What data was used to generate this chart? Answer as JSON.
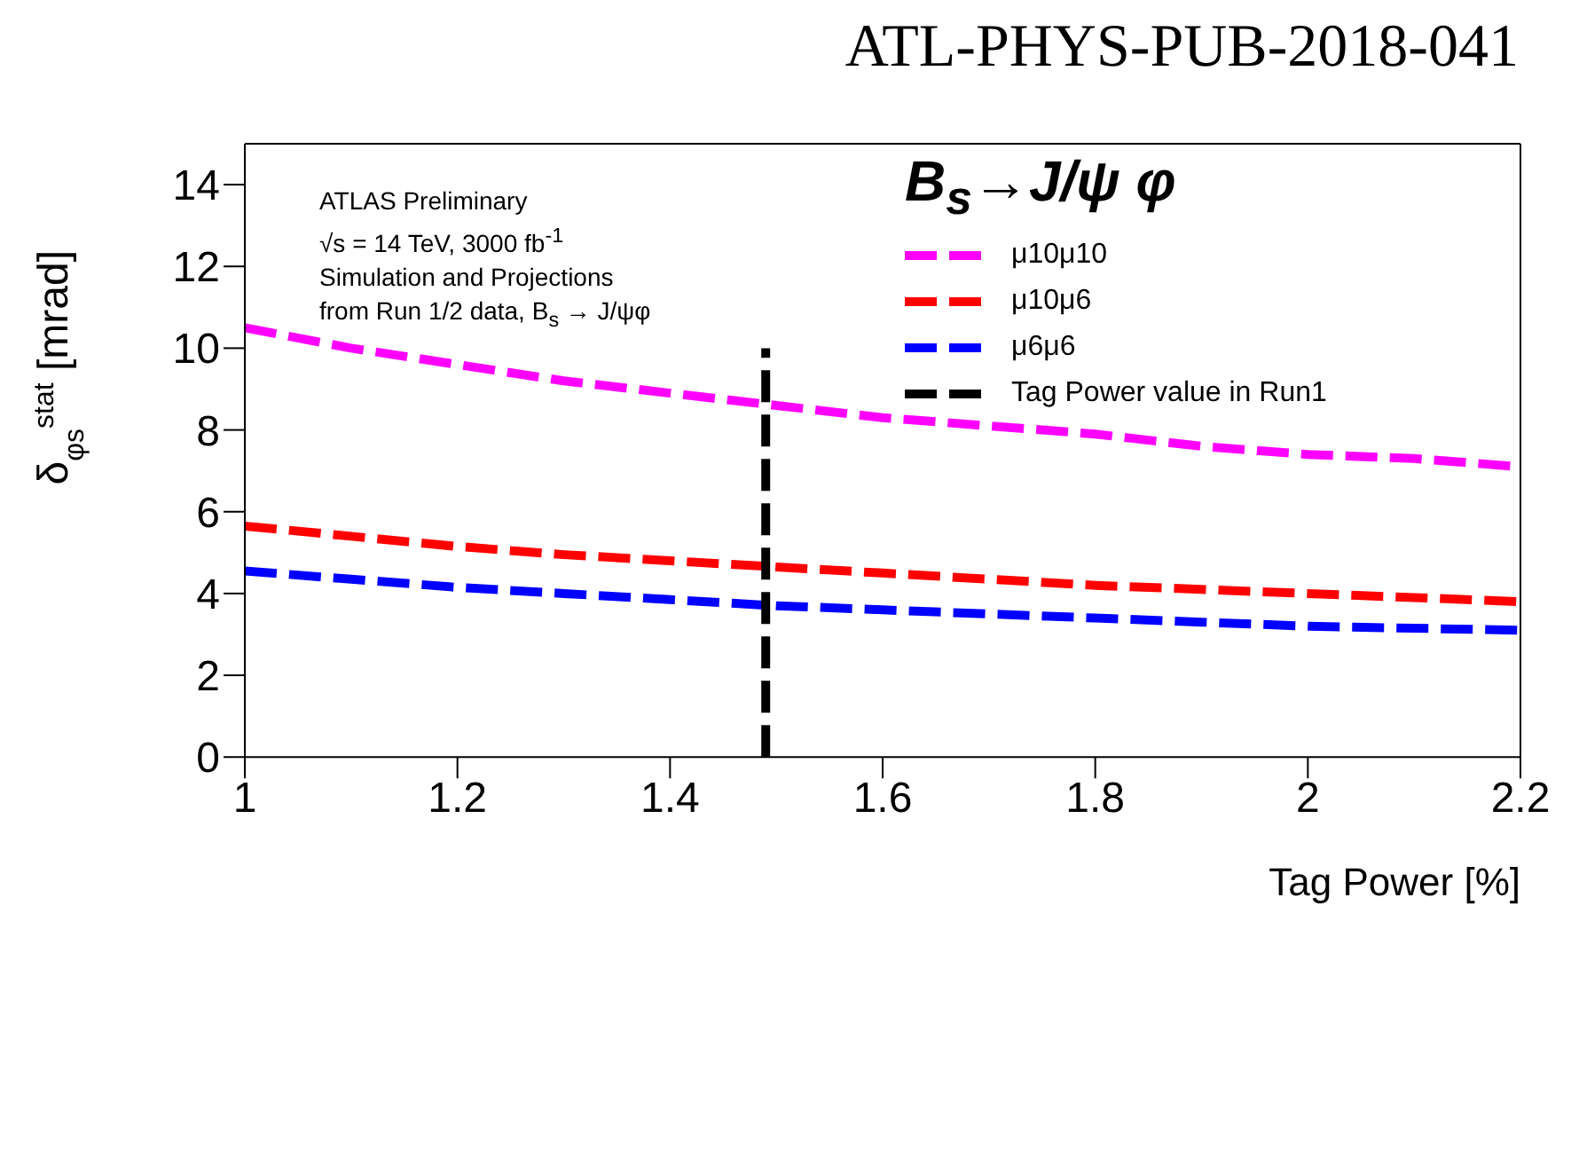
{
  "chart_data": {
    "type": "line",
    "title": "ATL-PHYS-PUB-2018-041",
    "xlabel": "Tag Power [%]",
    "ylabel": "δ$_{φs}$$^{stat}$ [mrad]",
    "legend_title": "B$_{s}$→J/ψ φ",
    "annotations": [
      "ATLAS Preliminary",
      "√s = 14 TeV, 3000 fb$^{-1}$",
      "Simulation and Projections",
      "from Run 1/2 data, B$_{s}$ → J/ψφ"
    ],
    "x": [
      1,
      1.1,
      1.2,
      1.3,
      1.4,
      1.5,
      1.6,
      1.7,
      1.8,
      1.9,
      2,
      2.1,
      2.2
    ],
    "series": [
      {
        "name": "μ10μ10",
        "color": "#ff00ff",
        "line_style": "dashed",
        "values": [
          10.5,
          10.0,
          9.6,
          9.2,
          8.9,
          8.6,
          8.3,
          8.1,
          7.9,
          7.6,
          7.4,
          7.3,
          7.1
        ]
      },
      {
        "name": "μ10μ6",
        "color": "#ff0000",
        "line_style": "dashed",
        "values": [
          5.65,
          5.4,
          5.15,
          4.95,
          4.8,
          4.65,
          4.5,
          4.35,
          4.2,
          4.1,
          4.0,
          3.9,
          3.8
        ]
      },
      {
        "name": "μ6μ6",
        "color": "#0000ff",
        "line_style": "dashed",
        "values": [
          4.55,
          4.35,
          4.15,
          4.0,
          3.85,
          3.7,
          3.6,
          3.5,
          3.4,
          3.3,
          3.2,
          3.15,
          3.1
        ]
      },
      {
        "name": "Tag Power value in Run1",
        "color": "#000000",
        "line_style": "dashed",
        "x": [
          1.49,
          1.49
        ],
        "values": [
          0,
          10
        ]
      }
    ],
    "xlim": [
      1,
      2.2
    ],
    "xticks": [
      1,
      1.2,
      1.4,
      1.6,
      1.8,
      2,
      2.2
    ],
    "ylim": [
      0,
      15
    ],
    "yticks": [
      0,
      2,
      4,
      6,
      8,
      10,
      12,
      14
    ],
    "grid": false,
    "legend": "top right",
    "marker": "none"
  }
}
